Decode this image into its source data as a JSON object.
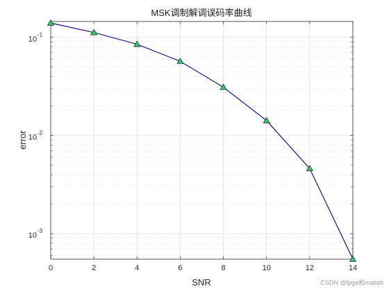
{
  "chart_data": {
    "type": "line",
    "title": "MSK调制解调误码率曲线",
    "xlabel": "SNR",
    "ylabel": "error",
    "yscale": "log",
    "xlim": [
      0,
      14
    ],
    "ylim": [
      0.00055,
      0.145
    ],
    "xticks": [
      "0",
      "2",
      "4",
      "6",
      "8",
      "10",
      "12",
      "14"
    ],
    "yticks": [
      {
        "value": 0.1,
        "mantissa": "10",
        "exp": "-1"
      },
      {
        "value": 0.01,
        "mantissa": "10",
        "exp": "-2"
      },
      {
        "value": 0.001,
        "mantissa": "10",
        "exp": "-3"
      }
    ],
    "grid": true,
    "series": [
      {
        "x": [
          0,
          2,
          4,
          6,
          8,
          10,
          12,
          14
        ],
        "values": [
          0.14,
          0.112,
          0.085,
          0.057,
          0.031,
          0.0142,
          0.0046,
          0.00055
        ],
        "line_color": "#000080",
        "marker": "triangle",
        "marker_color": "#33cc66"
      }
    ]
  },
  "watermark": "CSDN @fpga和matlab"
}
